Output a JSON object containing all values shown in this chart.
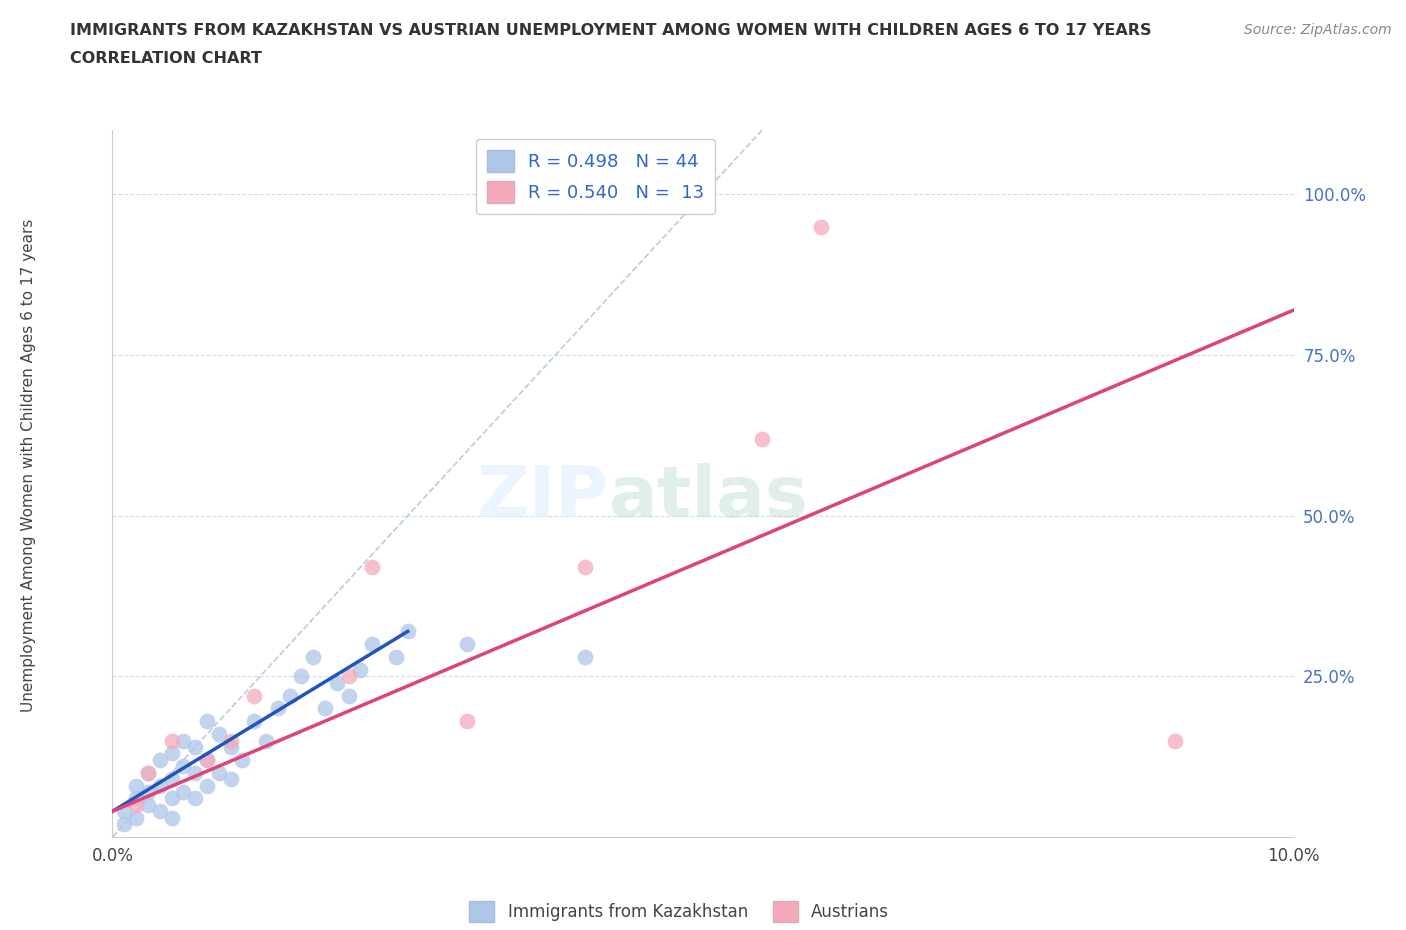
{
  "title_line1": "IMMIGRANTS FROM KAZAKHSTAN VS AUSTRIAN UNEMPLOYMENT AMONG WOMEN WITH CHILDREN AGES 6 TO 17 YEARS",
  "title_line2": "CORRELATION CHART",
  "ylabel": "Unemployment Among Women with Children Ages 6 to 17 years",
  "source": "Source: ZipAtlas.com",
  "xlim": [
    0.0,
    0.1
  ],
  "ylim": [
    0.0,
    1.1
  ],
  "xtick_positions": [
    0.0,
    0.02,
    0.04,
    0.06,
    0.08,
    0.1
  ],
  "xtick_labels": [
    "0.0%",
    "",
    "",
    "",
    "",
    "10.0%"
  ],
  "ytick_positions": [
    0.0,
    0.25,
    0.5,
    0.75,
    1.0
  ],
  "ytick_labels": [
    "",
    "25.0%",
    "50.0%",
    "75.0%",
    "100.0%"
  ],
  "legend1_R": "0.498",
  "legend1_N": "44",
  "legend2_R": "0.540",
  "legend2_N": "13",
  "blue_color": "#AEC6E8",
  "pink_color": "#F4AABB",
  "blue_line_color": "#2255BB",
  "pink_line_color": "#DD4477",
  "diagonal_color": "#BBCCDD",
  "watermark_zip": "ZIP",
  "watermark_atlas": "atlas",
  "blue_scatter_x": [
    0.001,
    0.001,
    0.002,
    0.002,
    0.002,
    0.003,
    0.003,
    0.003,
    0.004,
    0.004,
    0.004,
    0.005,
    0.005,
    0.005,
    0.005,
    0.006,
    0.006,
    0.006,
    0.007,
    0.007,
    0.007,
    0.008,
    0.008,
    0.008,
    0.009,
    0.009,
    0.01,
    0.01,
    0.011,
    0.012,
    0.013,
    0.014,
    0.015,
    0.016,
    0.017,
    0.018,
    0.019,
    0.02,
    0.021,
    0.022,
    0.024,
    0.025,
    0.03,
    0.04
  ],
  "blue_scatter_y": [
    0.02,
    0.04,
    0.03,
    0.06,
    0.08,
    0.05,
    0.07,
    0.1,
    0.04,
    0.08,
    0.12,
    0.06,
    0.09,
    0.13,
    0.03,
    0.07,
    0.11,
    0.15,
    0.06,
    0.1,
    0.14,
    0.08,
    0.12,
    0.18,
    0.1,
    0.16,
    0.09,
    0.14,
    0.12,
    0.18,
    0.15,
    0.2,
    0.22,
    0.25,
    0.28,
    0.2,
    0.24,
    0.22,
    0.26,
    0.3,
    0.28,
    0.32,
    0.3,
    0.28
  ],
  "pink_scatter_x": [
    0.002,
    0.003,
    0.005,
    0.008,
    0.01,
    0.012,
    0.02,
    0.022,
    0.03,
    0.04,
    0.055,
    0.06,
    0.09
  ],
  "pink_scatter_y": [
    0.05,
    0.1,
    0.15,
    0.12,
    0.15,
    0.22,
    0.25,
    0.42,
    0.18,
    0.42,
    0.62,
    0.95,
    0.15
  ],
  "blue_trend_x": [
    0.0,
    0.025
  ],
  "blue_trend_y": [
    0.04,
    0.32
  ],
  "pink_trend_x": [
    0.0,
    0.1
  ],
  "pink_trend_y": [
    0.04,
    0.82
  ]
}
